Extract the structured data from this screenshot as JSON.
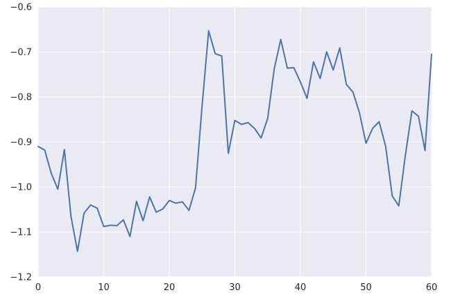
{
  "colors": {
    "plot_background": "#eaeaf2",
    "grid": "#ffffff",
    "line": "#4c72b0",
    "tick_text": "#262626"
  },
  "chart_data": {
    "type": "line",
    "title": "",
    "xlabel": "",
    "ylabel": "",
    "xlim": [
      0,
      60
    ],
    "ylim": [
      -1.2,
      -0.6
    ],
    "grid": true,
    "x_ticks": [
      0,
      10,
      20,
      30,
      40,
      50,
      60
    ],
    "y_ticks": [
      -1.2,
      -1.1,
      -1.0,
      -0.9,
      -0.8,
      -0.7,
      -0.6
    ],
    "x_tick_labels": [
      "0",
      "10",
      "20",
      "30",
      "40",
      "50",
      "60"
    ],
    "y_tick_labels": [
      "−1.2",
      "−1.1",
      "−1.0",
      "−0.9",
      "−0.8",
      "−0.7",
      "−0.6"
    ],
    "series": [
      {
        "x": [
          0,
          1,
          2,
          3,
          4,
          5,
          6,
          7,
          8,
          9,
          10,
          11,
          12,
          13,
          14,
          15,
          16,
          17,
          18,
          19,
          20,
          21,
          22,
          23,
          24,
          25,
          26,
          27,
          28,
          29,
          30,
          31,
          32,
          33,
          34,
          35,
          36,
          37,
          38,
          39,
          40,
          41,
          42,
          43,
          44,
          45,
          46,
          47,
          48,
          49,
          50,
          51,
          52,
          53,
          54,
          55,
          56,
          57,
          58,
          59,
          60
        ],
        "values": [
          -0.91,
          -0.918,
          -0.97,
          -1.005,
          -0.917,
          -1.065,
          -1.143,
          -1.058,
          -1.04,
          -1.047,
          -1.088,
          -1.085,
          -1.086,
          -1.073,
          -1.11,
          -1.032,
          -1.075,
          -1.022,
          -1.056,
          -1.049,
          -1.03,
          -1.036,
          -1.033,
          -1.052,
          -1.002,
          -0.82,
          -0.653,
          -0.704,
          -0.709,
          -0.925,
          -0.852,
          -0.861,
          -0.857,
          -0.87,
          -0.891,
          -0.848,
          -0.738,
          -0.672,
          -0.736,
          -0.735,
          -0.767,
          -0.803,
          -0.722,
          -0.759,
          -0.7,
          -0.74,
          -0.691,
          -0.772,
          -0.789,
          -0.835,
          -0.903,
          -0.87,
          -0.855,
          -0.91,
          -1.02,
          -1.042,
          -0.93,
          -0.831,
          -0.843,
          -0.919,
          -0.705
        ]
      }
    ]
  }
}
